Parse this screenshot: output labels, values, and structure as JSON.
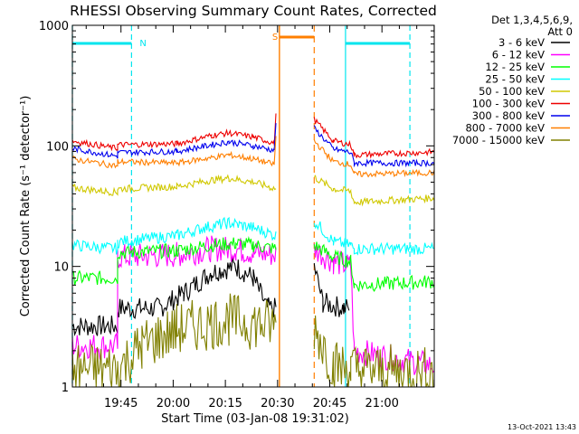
{
  "chart_data": {
    "type": "line",
    "title": "RHESSI Observing Summary Count Rates, Corrected",
    "xlabel": "Start Time (03-Jan-08 19:31:02)",
    "ylabel": "Corrected Count Rate (s⁻¹ detector⁻¹)",
    "yscale": "log",
    "ylim": [
      1,
      1000
    ],
    "xlim_minutes": [
      0,
      104
    ],
    "x_ticks": [
      "19:45",
      "20:00",
      "20:15",
      "20:30",
      "20:45",
      "21:00"
    ],
    "x_tick_minutes": [
      13.97,
      28.97,
      43.97,
      58.97,
      73.97,
      88.97
    ],
    "y_ticks": [
      "1",
      "10",
      "100",
      "1000"
    ],
    "y_tick_values": [
      1,
      10,
      100,
      1000
    ],
    "grid": false,
    "legend_position": "right",
    "legend_header": [
      "Det 1,3,4,5,6,9,",
      "Att 0"
    ],
    "footer_date": "13-Oct-2021 13:43",
    "annotations": [
      {
        "label": "N",
        "type": "night",
        "start": 0,
        "end": 17,
        "color": "#00e5ee"
      },
      {
        "label": "",
        "type": "night",
        "start": 78.5,
        "end": 97,
        "color": "#00e5ee"
      },
      {
        "label": "S",
        "type": "saa",
        "start": 59.5,
        "end": 69.5,
        "color": "#ff7f00"
      }
    ],
    "series": [
      {
        "name": "3 - 6 keV",
        "color": "#000000",
        "segments": [
          [
            [
              0,
              3.2
            ],
            [
              13,
              3.2
            ],
            [
              13,
              4.5
            ],
            [
              25,
              4.5
            ],
            [
              32,
              6
            ],
            [
              40,
              9
            ],
            [
              47,
              10
            ],
            [
              52,
              8
            ],
            [
              56,
              4.5
            ],
            [
              58.5,
              4.5
            ]
          ],
          [
            [
              69.5,
              10
            ],
            [
              72,
              5
            ],
            [
              78,
              4.5
            ],
            [
              79.5,
              4.5
            ]
          ]
        ]
      },
      {
        "name": "6 - 12 keV",
        "color": "#ff00ff",
        "segments": [
          [
            [
              0,
              2.2
            ],
            [
              13,
              2.2
            ],
            [
              13,
              12
            ],
            [
              30,
              12.5
            ],
            [
              40,
              14
            ],
            [
              47,
              14
            ],
            [
              52,
              13
            ],
            [
              58.5,
              12.5
            ]
          ],
          [
            [
              69.5,
              14
            ],
            [
              75,
              11
            ],
            [
              80,
              10
            ],
            [
              81,
              2
            ],
            [
              104,
              1.5
            ]
          ]
        ]
      },
      {
        "name": "12 - 25 keV",
        "color": "#00ff00",
        "segments": [
          [
            [
              0,
              8
            ],
            [
              13,
              8
            ],
            [
              13,
              13
            ],
            [
              30,
              13.5
            ],
            [
              40,
              15
            ],
            [
              47,
              15.5
            ],
            [
              52,
              15
            ],
            [
              58.5,
              14
            ]
          ],
          [
            [
              69.5,
              15
            ],
            [
              75,
              12
            ],
            [
              80,
              11
            ],
            [
              81,
              7
            ],
            [
              104,
              7.5
            ]
          ]
        ]
      },
      {
        "name": "25 - 50 keV",
        "color": "#00ffff",
        "segments": [
          [
            [
              0,
              15
            ],
            [
              13,
              14
            ],
            [
              13,
              16
            ],
            [
              30,
              18
            ],
            [
              38,
              21
            ],
            [
              45,
              23
            ],
            [
              52,
              21
            ],
            [
              58.5,
              18
            ]
          ],
          [
            [
              69.5,
              24
            ],
            [
              75,
              16
            ],
            [
              80,
              15
            ],
            [
              81,
              14
            ],
            [
              104,
              14
            ]
          ]
        ]
      },
      {
        "name": "50 - 100 keV",
        "color": "#d0c800",
        "segments": [
          [
            [
              0,
              45
            ],
            [
              13,
              41
            ],
            [
              13,
              44
            ],
            [
              30,
              46
            ],
            [
              40,
              52
            ],
            [
              45,
              54
            ],
            [
              52,
              50
            ],
            [
              58.5,
              44
            ]
          ],
          [
            [
              69.5,
              55
            ],
            [
              75,
              44
            ],
            [
              80,
              42
            ],
            [
              81,
              34
            ],
            [
              104,
              37
            ]
          ]
        ]
      },
      {
        "name": "100 - 300 keV",
        "color": "#ee0000",
        "segments": [
          [
            [
              0,
              110
            ],
            [
              13,
              95
            ],
            [
              13,
              102
            ],
            [
              30,
              104
            ],
            [
              40,
              122
            ],
            [
              45,
              128
            ],
            [
              52,
              118
            ],
            [
              58,
              106
            ],
            [
              58.5,
              185
            ]
          ],
          [
            [
              69.5,
              165
            ],
            [
              75,
              110
            ],
            [
              80,
              102
            ],
            [
              81,
              84
            ],
            [
              104,
              89
            ]
          ]
        ]
      },
      {
        "name": "300 - 800 keV",
        "color": "#0000ee",
        "segments": [
          [
            [
              0,
              95
            ],
            [
              13,
              82
            ],
            [
              13,
              88
            ],
            [
              30,
              90
            ],
            [
              40,
              102
            ],
            [
              45,
              108
            ],
            [
              52,
              100
            ],
            [
              58,
              92
            ],
            [
              58.5,
              160
            ]
          ],
          [
            [
              69.5,
              140
            ],
            [
              75,
              94
            ],
            [
              80,
              88
            ],
            [
              81,
              72
            ],
            [
              104,
              72
            ]
          ]
        ]
      },
      {
        "name": "800 - 7000 keV",
        "color": "#ff7f00",
        "segments": [
          [
            [
              0,
              78
            ],
            [
              13,
              68
            ],
            [
              13,
              74
            ],
            [
              30,
              72
            ],
            [
              40,
              80
            ],
            [
              45,
              84
            ],
            [
              52,
              78
            ],
            [
              58,
              70
            ],
            [
              58.5,
              120
            ]
          ],
          [
            [
              69.5,
              110
            ],
            [
              75,
              74
            ],
            [
              80,
              70
            ],
            [
              81,
              58
            ],
            [
              104,
              60
            ]
          ]
        ]
      },
      {
        "name": "7000 - 15000 keV",
        "color": "#808000",
        "segments": [
          [
            [
              0,
              1.4
            ],
            [
              13,
              1.4
            ],
            [
              20,
              2.2
            ],
            [
              30,
              3
            ],
            [
              45,
              3.6
            ],
            [
              58.5,
              3.2
            ]
          ],
          [
            [
              69.5,
              3.2
            ],
            [
              75,
              1.5
            ],
            [
              80,
              1.4
            ],
            [
              104,
              1.3
            ]
          ]
        ]
      }
    ]
  }
}
